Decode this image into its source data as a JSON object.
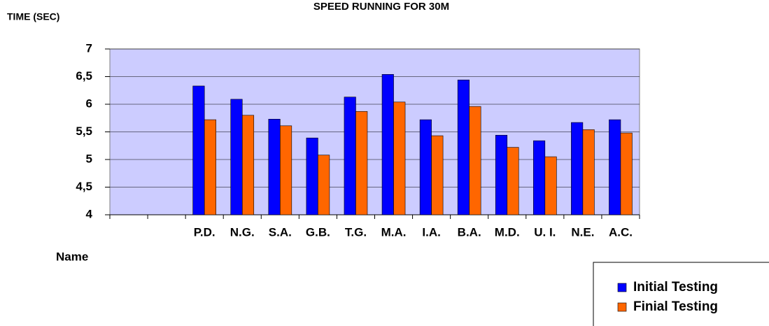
{
  "chart_data": {
    "type": "bar",
    "title": "SPEED RUNNING FOR 30M",
    "y_label": "TIME (SEC)",
    "x_label": "Name",
    "categories": [
      null,
      null,
      "P.D.",
      "N.G.",
      "S.A.",
      "G.B.",
      "T.G.",
      "M.A.",
      "I.A.",
      "B.A.",
      "M.D.",
      "U. I.",
      "N.E.",
      "A.C."
    ],
    "series": [
      {
        "name": "Initial Testing",
        "color": "#0000ff",
        "values": [
          null,
          null,
          6.33,
          6.09,
          5.73,
          5.39,
          6.13,
          6.54,
          5.72,
          6.44,
          5.44,
          5.34,
          5.67,
          5.72
        ]
      },
      {
        "name": "Finial Testing",
        "color": "#ff6600",
        "values": [
          null,
          null,
          5.72,
          5.8,
          5.61,
          5.08,
          5.87,
          6.04,
          5.43,
          5.96,
          5.22,
          5.05,
          5.54,
          5.48
        ]
      }
    ],
    "ylim": [
      4,
      7
    ],
    "yticks": [
      {
        "value": 4,
        "label": "4"
      },
      {
        "value": 4.5,
        "label": "4,5"
      },
      {
        "value": 5,
        "label": "5"
      },
      {
        "value": 5.5,
        "label": "5,5"
      },
      {
        "value": 6,
        "label": "6"
      },
      {
        "value": 6.5,
        "label": "6,5"
      },
      {
        "value": 7,
        "label": "7"
      }
    ],
    "grid": true,
    "legend": "bottom-right",
    "plot_background": "#ccccff"
  }
}
